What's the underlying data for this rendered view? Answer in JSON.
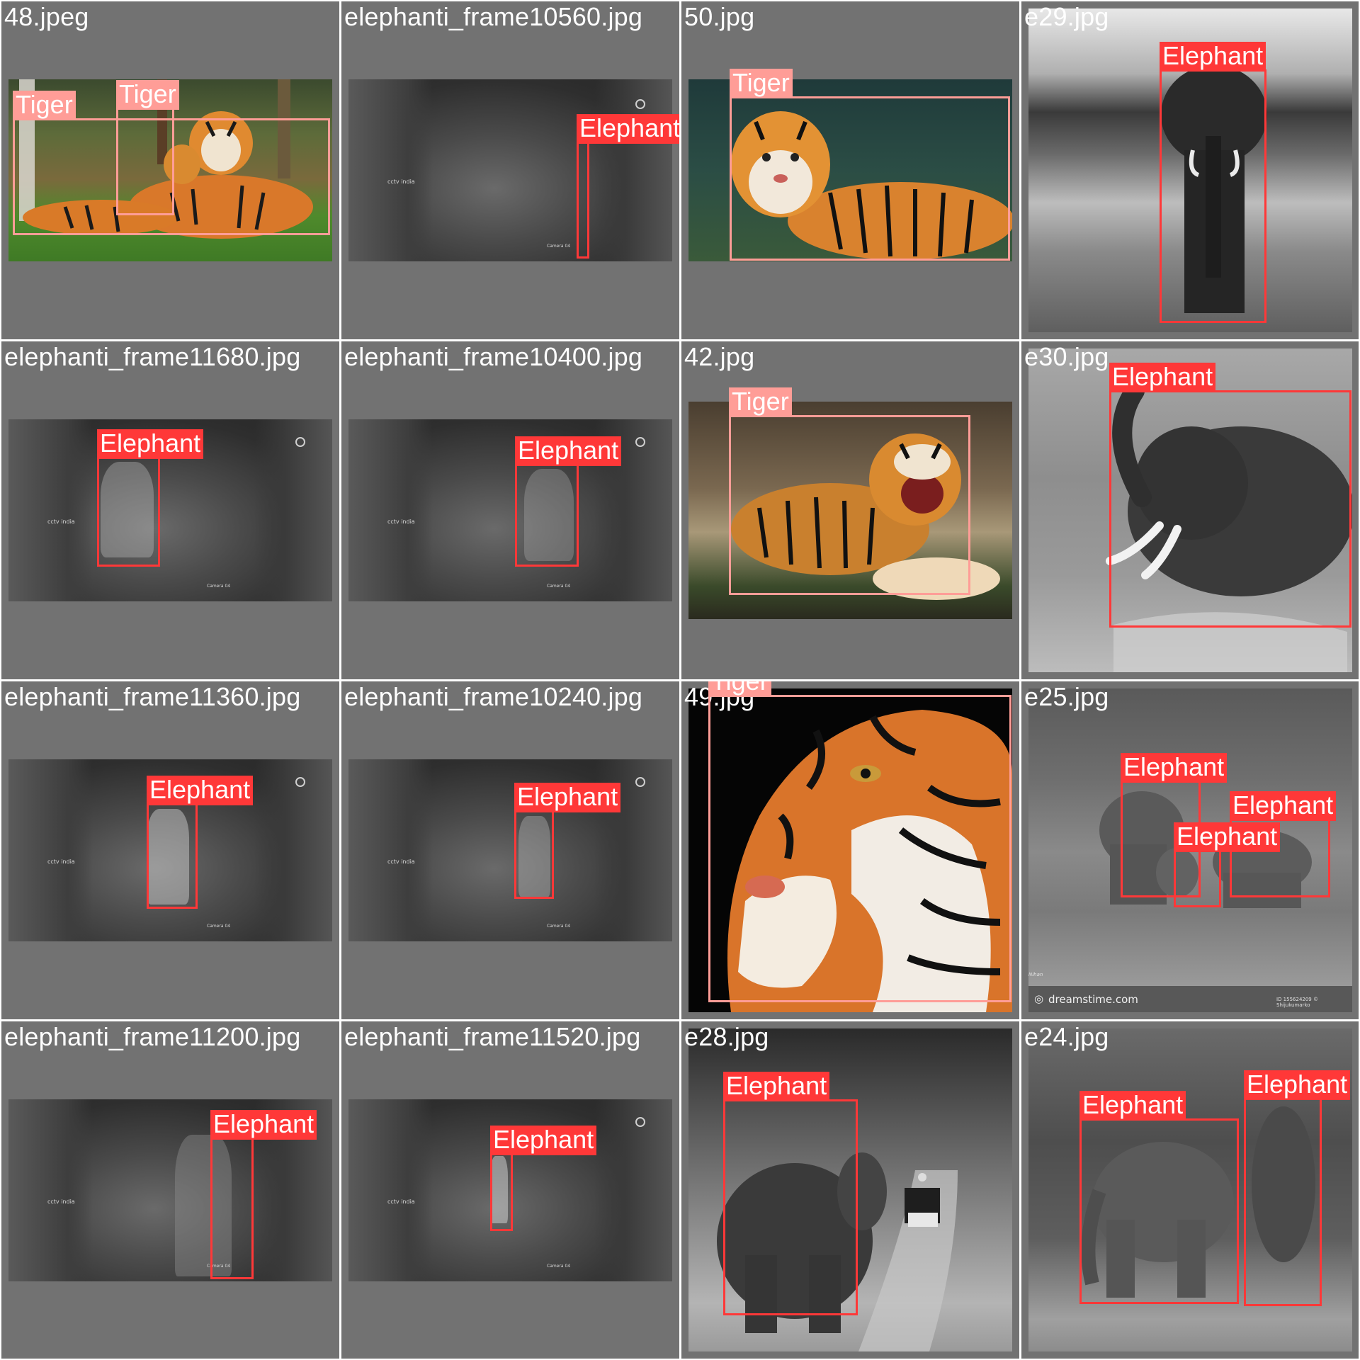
{
  "colors": {
    "background": "#727272",
    "tiger_box": "#ff9d97",
    "elephant_box": "#ff3838",
    "label_text": "#ffffff"
  },
  "cells": [
    {
      "filename": "48.jpeg",
      "style": "color-tiger",
      "detections": [
        {
          "label": "Tiger"
        },
        {
          "label": "Tiger"
        }
      ]
    },
    {
      "filename": "elephanti_frame10560.jpg",
      "style": "cctv",
      "detections": [
        {
          "label": "Elephant"
        }
      ]
    },
    {
      "filename": "50.jpg",
      "style": "color-tiger",
      "detections": [
        {
          "label": "Tiger"
        }
      ]
    },
    {
      "filename": "e29.jpg",
      "style": "grayscale",
      "detections": [
        {
          "label": "Elephant"
        }
      ]
    },
    {
      "filename": "elephanti_frame11680.jpg",
      "style": "cctv",
      "detections": [
        {
          "label": "Elephant"
        }
      ]
    },
    {
      "filename": "elephanti_frame10400.jpg",
      "style": "cctv",
      "detections": [
        {
          "label": "Elephant"
        }
      ]
    },
    {
      "filename": "42.jpg",
      "style": "color-tiger",
      "detections": [
        {
          "label": "Tiger"
        }
      ]
    },
    {
      "filename": "e30.jpg",
      "style": "grayscale",
      "detections": [
        {
          "label": "Elephant"
        }
      ]
    },
    {
      "filename": "elephanti_frame11360.jpg",
      "style": "cctv",
      "detections": [
        {
          "label": "Elephant"
        }
      ]
    },
    {
      "filename": "elephanti_frame10240.jpg",
      "style": "cctv",
      "detections": [
        {
          "label": "Elephant"
        }
      ]
    },
    {
      "filename": "49.jpg",
      "style": "color-tiger",
      "detections": [
        {
          "label": "Tiger"
        }
      ]
    },
    {
      "filename": "e25.jpg",
      "style": "grayscale",
      "detections": [
        {
          "label": "Elephant"
        },
        {
          "label": "Elephant"
        },
        {
          "label": "Elephant"
        }
      ]
    },
    {
      "filename": "elephanti_frame11200.jpg",
      "style": "cctv",
      "detections": [
        {
          "label": "Elephant"
        }
      ]
    },
    {
      "filename": "elephanti_frame11520.jpg",
      "style": "cctv",
      "detections": [
        {
          "label": "Elephant"
        }
      ]
    },
    {
      "filename": "e28.jpg",
      "style": "grayscale",
      "detections": [
        {
          "label": "Elephant"
        }
      ]
    },
    {
      "filename": "e24.jpg",
      "style": "grayscale",
      "detections": [
        {
          "label": "Elephant"
        },
        {
          "label": "Elephant"
        }
      ]
    }
  ],
  "cctv_overlay": {
    "watermark": "cctv india",
    "camera_label": "Camera 04"
  },
  "dreamstime_watermark": {
    "brand": "dreamstime.com",
    "id_text": "ID 155624209 © Shijukumarko",
    "signature": "Nihan"
  }
}
